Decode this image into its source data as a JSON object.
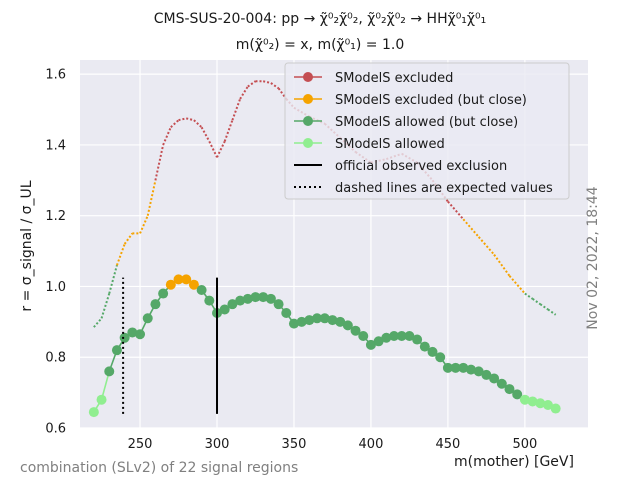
{
  "chart_data": {
    "type": "line",
    "title_line1": "CMS-SUS-20-004: pp → χ̃⁰₂χ̃⁰₂, χ̃⁰₂χ̃⁰₂ → HHχ̃⁰₁χ̃⁰₁",
    "title_line2": "m(χ̃⁰₂) = x, m(χ̃⁰₁) = 1.0",
    "xlabel": "m(mother) [GeV]",
    "ylabel": "r = σ_signal / σ_UL",
    "xlim": [
      211,
      541
    ],
    "ylim": [
      0.6,
      1.64
    ],
    "xticks": [
      250,
      300,
      350,
      400,
      450,
      500
    ],
    "yticks": [
      0.6,
      0.8,
      1.0,
      1.2,
      1.4,
      1.6
    ],
    "grid": true,
    "legend_position": "top-right",
    "footer_left": "combination (SLv2) of 22 signal regions",
    "timestamp": "Nov 02, 2022, 18:44",
    "legend": [
      {
        "label": "SModelS excluded",
        "color": "#c44e52",
        "kind": "line-marker"
      },
      {
        "label": "SModelS excluded (but close)",
        "color": "#f5a300",
        "kind": "line-marker"
      },
      {
        "label": "SModelS allowed (but close)",
        "color": "#55a868",
        "kind": "line-marker"
      },
      {
        "label": "SModelS allowed",
        "color": "#90ee90",
        "kind": "line-marker"
      },
      {
        "label": "official observed exclusion",
        "color": "#000000",
        "kind": "solid"
      },
      {
        "label": "dashed lines are expected values",
        "color": "#000000",
        "kind": "dotted"
      }
    ],
    "observed": [
      {
        "x": 220,
        "y": 0.645,
        "cls": "allowed"
      },
      {
        "x": 225,
        "y": 0.68,
        "cls": "allowed"
      },
      {
        "x": 230,
        "y": 0.76,
        "cls": "close_allowed"
      },
      {
        "x": 235,
        "y": 0.82,
        "cls": "close_allowed"
      },
      {
        "x": 240,
        "y": 0.855,
        "cls": "close_allowed"
      },
      {
        "x": 245,
        "y": 0.87,
        "cls": "close_allowed"
      },
      {
        "x": 250,
        "y": 0.865,
        "cls": "close_allowed"
      },
      {
        "x": 255,
        "y": 0.91,
        "cls": "close_allowed"
      },
      {
        "x": 260,
        "y": 0.95,
        "cls": "close_allowed"
      },
      {
        "x": 265,
        "y": 0.98,
        "cls": "close_allowed"
      },
      {
        "x": 270,
        "y": 1.005,
        "cls": "close_excluded"
      },
      {
        "x": 275,
        "y": 1.02,
        "cls": "close_excluded"
      },
      {
        "x": 280,
        "y": 1.02,
        "cls": "close_excluded"
      },
      {
        "x": 285,
        "y": 1.005,
        "cls": "close_excluded"
      },
      {
        "x": 290,
        "y": 0.99,
        "cls": "close_allowed"
      },
      {
        "x": 295,
        "y": 0.96,
        "cls": "close_allowed"
      },
      {
        "x": 300,
        "y": 0.925,
        "cls": "close_allowed"
      },
      {
        "x": 305,
        "y": 0.935,
        "cls": "close_allowed"
      },
      {
        "x": 310,
        "y": 0.95,
        "cls": "close_allowed"
      },
      {
        "x": 315,
        "y": 0.96,
        "cls": "close_allowed"
      },
      {
        "x": 320,
        "y": 0.965,
        "cls": "close_allowed"
      },
      {
        "x": 325,
        "y": 0.97,
        "cls": "close_allowed"
      },
      {
        "x": 330,
        "y": 0.97,
        "cls": "close_allowed"
      },
      {
        "x": 335,
        "y": 0.965,
        "cls": "close_allowed"
      },
      {
        "x": 340,
        "y": 0.95,
        "cls": "close_allowed"
      },
      {
        "x": 345,
        "y": 0.925,
        "cls": "close_allowed"
      },
      {
        "x": 350,
        "y": 0.895,
        "cls": "close_allowed"
      },
      {
        "x": 355,
        "y": 0.9,
        "cls": "close_allowed"
      },
      {
        "x": 360,
        "y": 0.905,
        "cls": "close_allowed"
      },
      {
        "x": 365,
        "y": 0.91,
        "cls": "close_allowed"
      },
      {
        "x": 370,
        "y": 0.91,
        "cls": "close_allowed"
      },
      {
        "x": 375,
        "y": 0.905,
        "cls": "close_allowed"
      },
      {
        "x": 380,
        "y": 0.9,
        "cls": "close_allowed"
      },
      {
        "x": 385,
        "y": 0.89,
        "cls": "close_allowed"
      },
      {
        "x": 390,
        "y": 0.875,
        "cls": "close_allowed"
      },
      {
        "x": 395,
        "y": 0.86,
        "cls": "close_allowed"
      },
      {
        "x": 400,
        "y": 0.835,
        "cls": "close_allowed"
      },
      {
        "x": 405,
        "y": 0.845,
        "cls": "close_allowed"
      },
      {
        "x": 410,
        "y": 0.855,
        "cls": "close_allowed"
      },
      {
        "x": 415,
        "y": 0.86,
        "cls": "close_allowed"
      },
      {
        "x": 420,
        "y": 0.86,
        "cls": "close_allowed"
      },
      {
        "x": 425,
        "y": 0.86,
        "cls": "close_allowed"
      },
      {
        "x": 430,
        "y": 0.85,
        "cls": "close_allowed"
      },
      {
        "x": 435,
        "y": 0.83,
        "cls": "close_allowed"
      },
      {
        "x": 440,
        "y": 0.815,
        "cls": "close_allowed"
      },
      {
        "x": 445,
        "y": 0.8,
        "cls": "close_allowed"
      },
      {
        "x": 450,
        "y": 0.77,
        "cls": "close_allowed"
      },
      {
        "x": 455,
        "y": 0.77,
        "cls": "close_allowed"
      },
      {
        "x": 460,
        "y": 0.77,
        "cls": "close_allowed"
      },
      {
        "x": 465,
        "y": 0.765,
        "cls": "close_allowed"
      },
      {
        "x": 470,
        "y": 0.76,
        "cls": "close_allowed"
      },
      {
        "x": 475,
        "y": 0.75,
        "cls": "close_allowed"
      },
      {
        "x": 480,
        "y": 0.74,
        "cls": "close_allowed"
      },
      {
        "x": 485,
        "y": 0.725,
        "cls": "close_allowed"
      },
      {
        "x": 490,
        "y": 0.71,
        "cls": "close_allowed"
      },
      {
        "x": 495,
        "y": 0.695,
        "cls": "close_allowed"
      },
      {
        "x": 500,
        "y": 0.68,
        "cls": "allowed"
      },
      {
        "x": 505,
        "y": 0.675,
        "cls": "allowed"
      },
      {
        "x": 510,
        "y": 0.67,
        "cls": "allowed"
      },
      {
        "x": 515,
        "y": 0.665,
        "cls": "allowed"
      },
      {
        "x": 520,
        "y": 0.655,
        "cls": "allowed"
      }
    ],
    "expected": [
      {
        "x": 220,
        "y": 0.885,
        "cls": "close_allowed"
      },
      {
        "x": 225,
        "y": 0.91,
        "cls": "close_allowed"
      },
      {
        "x": 230,
        "y": 0.98,
        "cls": "close_allowed"
      },
      {
        "x": 235,
        "y": 1.06,
        "cls": "close_excluded"
      },
      {
        "x": 240,
        "y": 1.12,
        "cls": "close_excluded"
      },
      {
        "x": 245,
        "y": 1.15,
        "cls": "close_excluded"
      },
      {
        "x": 250,
        "y": 1.15,
        "cls": "close_excluded"
      },
      {
        "x": 255,
        "y": 1.2,
        "cls": "close_excluded"
      },
      {
        "x": 260,
        "y": 1.3,
        "cls": "excluded"
      },
      {
        "x": 265,
        "y": 1.4,
        "cls": "excluded"
      },
      {
        "x": 270,
        "y": 1.45,
        "cls": "excluded"
      },
      {
        "x": 275,
        "y": 1.47,
        "cls": "excluded"
      },
      {
        "x": 280,
        "y": 1.475,
        "cls": "excluded"
      },
      {
        "x": 285,
        "y": 1.47,
        "cls": "excluded"
      },
      {
        "x": 290,
        "y": 1.45,
        "cls": "excluded"
      },
      {
        "x": 295,
        "y": 1.41,
        "cls": "excluded"
      },
      {
        "x": 300,
        "y": 1.365,
        "cls": "excluded"
      },
      {
        "x": 305,
        "y": 1.41,
        "cls": "excluded"
      },
      {
        "x": 310,
        "y": 1.47,
        "cls": "excluded"
      },
      {
        "x": 315,
        "y": 1.53,
        "cls": "excluded"
      },
      {
        "x": 320,
        "y": 1.565,
        "cls": "excluded"
      },
      {
        "x": 325,
        "y": 1.58,
        "cls": "excluded"
      },
      {
        "x": 330,
        "y": 1.58,
        "cls": "excluded"
      },
      {
        "x": 335,
        "y": 1.575,
        "cls": "excluded"
      },
      {
        "x": 340,
        "y": 1.56,
        "cls": "excluded"
      },
      {
        "x": 345,
        "y": 1.53,
        "cls": "excluded"
      },
      {
        "x": 350,
        "y": 1.505,
        "cls": "excluded"
      },
      {
        "x": 360,
        "y": 1.48,
        "cls": "excluded"
      },
      {
        "x": 370,
        "y": 1.46,
        "cls": "excluded"
      },
      {
        "x": 380,
        "y": 1.42,
        "cls": "excluded"
      },
      {
        "x": 390,
        "y": 1.38,
        "cls": "excluded"
      },
      {
        "x": 400,
        "y": 1.35,
        "cls": "excluded"
      },
      {
        "x": 410,
        "y": 1.36,
        "cls": "excluded"
      },
      {
        "x": 420,
        "y": 1.375,
        "cls": "excluded"
      },
      {
        "x": 430,
        "y": 1.35,
        "cls": "excluded"
      },
      {
        "x": 440,
        "y": 1.3,
        "cls": "excluded"
      },
      {
        "x": 450,
        "y": 1.24,
        "cls": "excluded"
      },
      {
        "x": 460,
        "y": 1.19,
        "cls": "close_excluded"
      },
      {
        "x": 470,
        "y": 1.14,
        "cls": "close_excluded"
      },
      {
        "x": 480,
        "y": 1.09,
        "cls": "close_excluded"
      },
      {
        "x": 490,
        "y": 1.03,
        "cls": "close_excluded"
      },
      {
        "x": 500,
        "y": 0.98,
        "cls": "close_allowed"
      },
      {
        "x": 505,
        "y": 0.965,
        "cls": "close_allowed"
      },
      {
        "x": 510,
        "y": 0.95,
        "cls": "close_allowed"
      },
      {
        "x": 515,
        "y": 0.935,
        "cls": "close_allowed"
      },
      {
        "x": 520,
        "y": 0.92,
        "cls": "close_allowed"
      }
    ],
    "official_observed_exclusion": [
      {
        "x": 300,
        "y_low": 0.64,
        "y_high": 1.025
      }
    ],
    "official_expected_exclusion": [
      {
        "x": 239,
        "y_low": 0.64,
        "y_high": 1.025
      }
    ],
    "colors": {
      "excluded": "#c44e52",
      "close_excluded": "#f5a300",
      "close_allowed": "#55a868",
      "allowed": "#90ee90",
      "plot_bg": "#eaeaf2",
      "grid": "#ffffff"
    }
  }
}
